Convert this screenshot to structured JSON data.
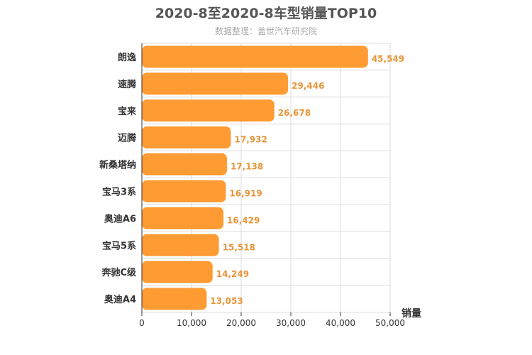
{
  "chart_data": {
    "type": "bar",
    "orientation": "horizontal",
    "title": "2020-8至2020-8车型销量TOP10",
    "subtitle": "数据整理：盖世汽车研究院",
    "categories": [
      "朗逸",
      "速腾",
      "宝来",
      "迈腾",
      "新桑塔纳",
      "宝马3系",
      "奥迪A6",
      "宝马5系",
      "奔驰C级",
      "奥迪A4"
    ],
    "values": [
      45549,
      29446,
      26678,
      17932,
      17138,
      16919,
      16429,
      15518,
      14249,
      13053
    ],
    "value_labels": [
      "45,549",
      "29,446",
      "26,678",
      "17,932",
      "17,138",
      "16,919",
      "16,429",
      "15,518",
      "14,249",
      "13,053"
    ],
    "xlabel": "销量",
    "ylabel": "",
    "xlim": [
      0,
      50000
    ],
    "xticks": [
      0,
      10000,
      20000,
      30000,
      40000,
      50000
    ],
    "xtick_labels": [
      "0",
      "10,000",
      "20,000",
      "30,000",
      "40,000",
      "50,000"
    ],
    "grid": true,
    "legend": "none",
    "colors": {
      "bar": "#ff9b33",
      "data_label": "#e8963a",
      "grid": "#dddddd",
      "axis": "#333333"
    }
  }
}
